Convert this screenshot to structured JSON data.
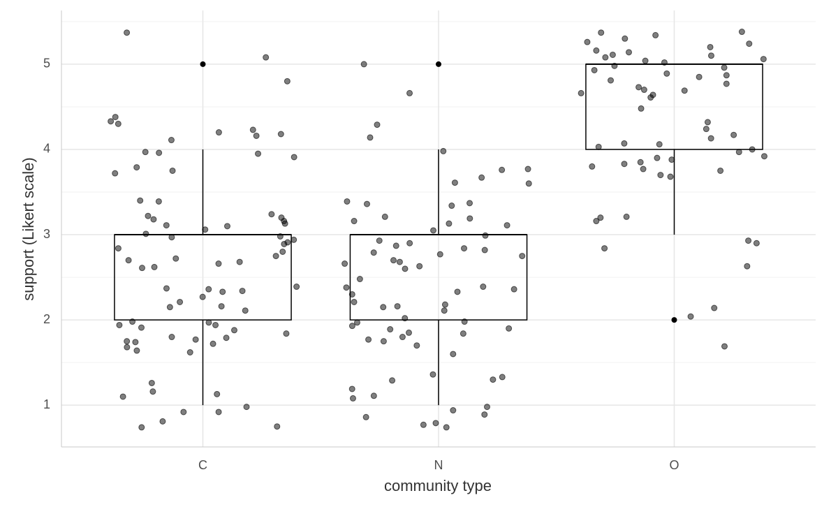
{
  "chart_data": {
    "type": "boxplot",
    "x_label": "community type",
    "y_label": "support (Likert scale)",
    "categories": [
      "C",
      "N",
      "O"
    ],
    "boxes": [
      {
        "whisker_low": 1,
        "q1": 2,
        "median": 3,
        "q3": 3,
        "whisker_high": 4,
        "outliers": [
          5
        ]
      },
      {
        "whisker_low": 1,
        "q1": 2,
        "median": 3,
        "q3": 3,
        "whisker_high": 4,
        "outliers": [
          5
        ]
      },
      {
        "whisker_low": 3,
        "q1": 4,
        "median": 5,
        "q3": 5,
        "whisker_high": 5,
        "outliers": [
          2
        ]
      }
    ],
    "points": [
      [
        5.37,
        5.08,
        4.8,
        4.38,
        4.33,
        4.3,
        4.23,
        4.2,
        4.18,
        4.16,
        4.11,
        3.97,
        3.96,
        3.95,
        3.91,
        3.79,
        3.75,
        3.72,
        3.39,
        3.4,
        3.24,
        3.22,
        3.2,
        3.18,
        3.16,
        3.13,
        3.11,
        3.1,
        3.06,
        3.01,
        2.98,
        2.97,
        2.94,
        2.91,
        2.89,
        2.84,
        2.8,
        2.75,
        2.72,
        2.7,
        2.68,
        2.66,
        2.62,
        2.61,
        2.39,
        2.37,
        2.36,
        2.34,
        2.33,
        2.27,
        2.21,
        2.16,
        2.15,
        2.11,
        1.98,
        1.97,
        1.94,
        1.94,
        1.91,
        1.88,
        1.84,
        1.8,
        1.79,
        1.77,
        1.75,
        1.74,
        1.72,
        1.68,
        1.64,
        1.62,
        1.26,
        1.16,
        1.13,
        1.1,
        0.98,
        0.92,
        0.92,
        0.81,
        0.75,
        0.74
      ],
      [
        5.0,
        4.66,
        4.29,
        4.14,
        3.98,
        3.77,
        3.67,
        3.76,
        3.61,
        3.6,
        3.39,
        3.37,
        3.36,
        3.34,
        3.21,
        3.19,
        3.16,
        3.13,
        3.11,
        3.05,
        2.99,
        2.93,
        2.9,
        2.87,
        2.84,
        2.82,
        2.79,
        2.77,
        2.75,
        2.7,
        2.68,
        2.66,
        2.63,
        2.6,
        2.48,
        2.39,
        2.38,
        2.36,
        2.33,
        2.3,
        2.21,
        2.18,
        2.16,
        2.15,
        2.11,
        2.02,
        1.98,
        1.97,
        1.93,
        1.9,
        1.89,
        1.85,
        1.84,
        1.8,
        1.77,
        1.75,
        1.7,
        1.6,
        1.36,
        1.33,
        1.3,
        1.29,
        1.19,
        1.11,
        1.08,
        0.98,
        0.94,
        0.89,
        0.86,
        0.79,
        0.77,
        0.74
      ],
      [
        5.37,
        5.38,
        5.34,
        5.3,
        5.26,
        5.24,
        5.2,
        5.16,
        5.14,
        5.11,
        5.1,
        5.08,
        5.06,
        5.04,
        5.02,
        4.98,
        4.96,
        4.93,
        4.89,
        4.87,
        4.85,
        4.81,
        4.77,
        4.73,
        4.7,
        4.69,
        4.66,
        4.64,
        4.61,
        4.48,
        4.32,
        4.24,
        4.17,
        4.13,
        4.07,
        4.06,
        4.03,
        4.0,
        3.97,
        3.92,
        3.9,
        3.88,
        3.85,
        3.83,
        3.8,
        3.77,
        3.75,
        3.7,
        3.68,
        3.21,
        3.2,
        3.16,
        2.9,
        2.93,
        2.84,
        2.63,
        2.14,
        2.04,
        1.69
      ]
    ],
    "ylim": [
      0.51,
      5.63
    ],
    "yticks": [
      1,
      2,
      3,
      4,
      5
    ],
    "yminor": [
      1.5,
      2.5,
      3.5,
      4.5,
      5.5
    ],
    "grid": true,
    "box_color": "#000000",
    "point_color": "#000000"
  }
}
